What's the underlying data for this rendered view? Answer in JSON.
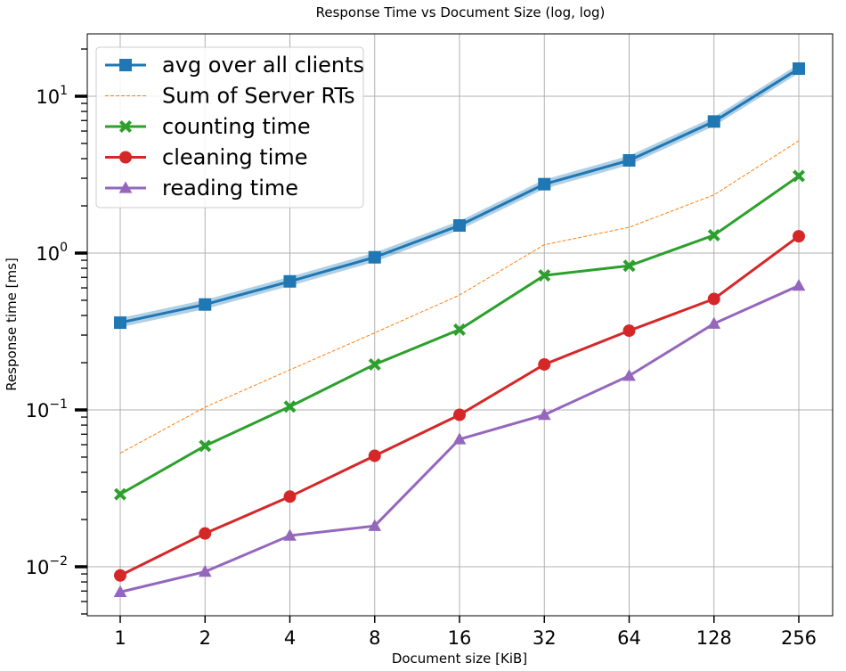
{
  "chart_data": {
    "type": "line",
    "title": "Response Time vs Document Size (log, log)",
    "xlabel": "Document size [KiB]",
    "ylabel": "Response time [ms]",
    "x_scale": "log2",
    "y_scale": "log10",
    "categories": [
      "1",
      "2",
      "4",
      "8",
      "16",
      "32",
      "64",
      "128",
      "256"
    ],
    "x": [
      1,
      2,
      4,
      8,
      16,
      32,
      64,
      128,
      256
    ],
    "ylim": [
      0.005,
      25
    ],
    "y_ticks": [
      {
        "value": 0.01,
        "base": "10",
        "exp": "−2"
      },
      {
        "value": 0.1,
        "base": "10",
        "exp": "−1"
      },
      {
        "value": 1,
        "base": "10",
        "exp": "0"
      },
      {
        "value": 10,
        "base": "10",
        "exp": "1"
      }
    ],
    "grid": true,
    "legend_position": "top-left",
    "series": [
      {
        "name": "avg over all clients",
        "color": "#1f77b4",
        "marker": "square",
        "line": "solid",
        "band": true,
        "values": [
          0.36,
          0.47,
          0.66,
          0.94,
          1.5,
          2.75,
          3.9,
          6.9,
          15.0
        ]
      },
      {
        "name": "Sum of Server RTs",
        "color": "#ff7f0e",
        "marker": "none",
        "line": "dashed",
        "values": [
          0.053,
          0.104,
          0.18,
          0.31,
          0.54,
          1.13,
          1.46,
          2.35,
          5.2
        ]
      },
      {
        "name": "counting time",
        "color": "#2ca02c",
        "marker": "x",
        "line": "solid",
        "values": [
          0.029,
          0.059,
          0.105,
          0.195,
          0.325,
          0.72,
          0.83,
          1.3,
          3.1
        ]
      },
      {
        "name": "cleaning time",
        "color": "#d62728",
        "marker": "circle",
        "line": "solid",
        "values": [
          0.0088,
          0.0163,
          0.028,
          0.051,
          0.093,
          0.195,
          0.32,
          0.51,
          1.28
        ]
      },
      {
        "name": "reading time",
        "color": "#9467bd",
        "marker": "triangle",
        "line": "solid",
        "values": [
          0.0069,
          0.0093,
          0.0158,
          0.0182,
          0.065,
          0.093,
          0.165,
          0.355,
          0.62
        ]
      }
    ]
  }
}
